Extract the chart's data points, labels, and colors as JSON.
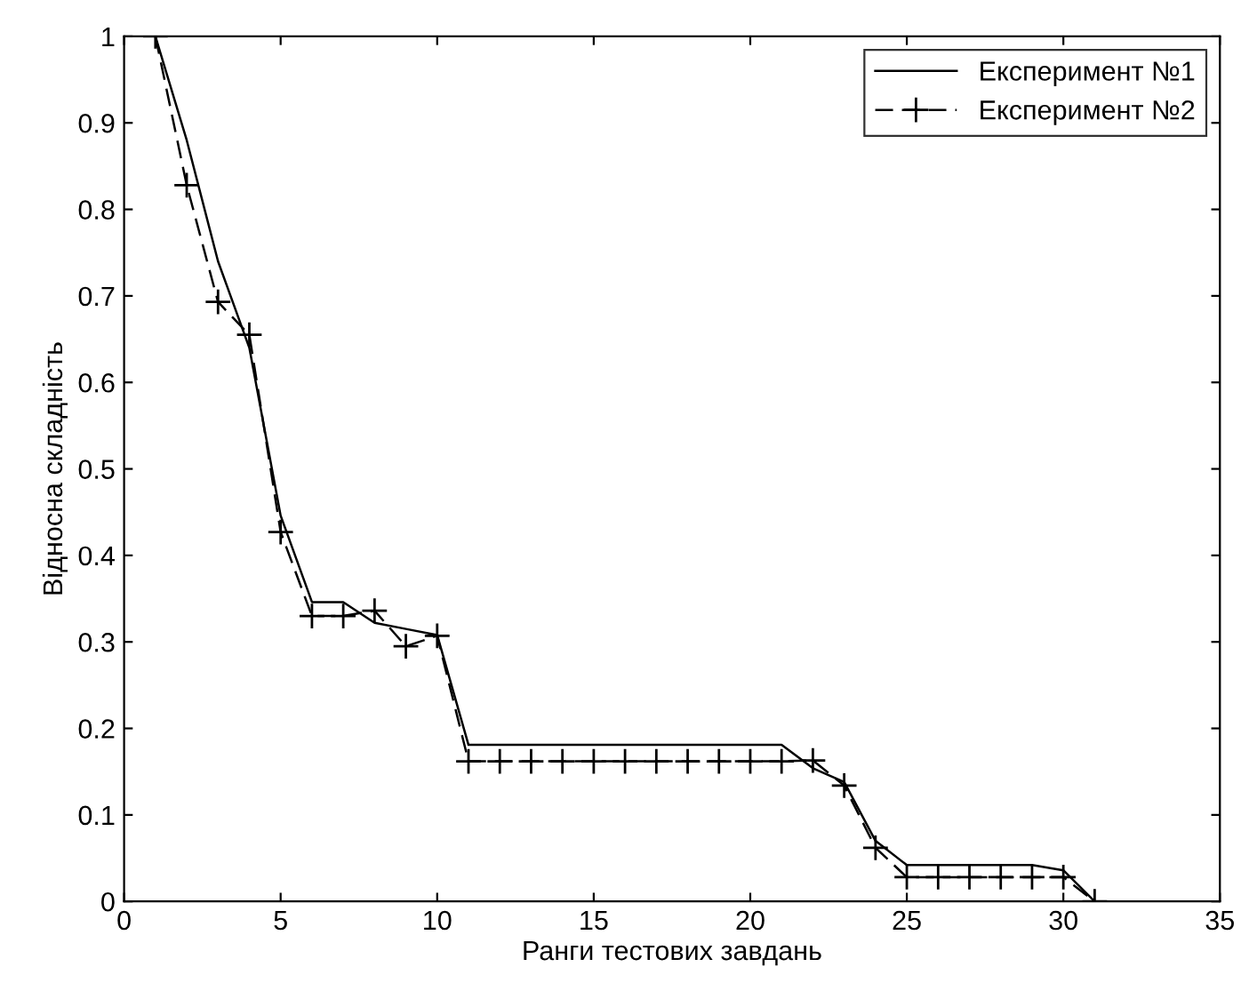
{
  "chart_data": {
    "type": "line",
    "xlabel": "Ранги тестових завдань",
    "ylabel": "Відносна складність",
    "x": [
      1,
      2,
      3,
      4,
      5,
      6,
      7,
      8,
      9,
      10,
      11,
      12,
      13,
      14,
      15,
      16,
      17,
      18,
      19,
      20,
      21,
      22,
      23,
      24,
      25,
      26,
      27,
      28,
      29,
      30,
      31
    ],
    "series": [
      {
        "name": "Експеримент №1",
        "color": "#000000",
        "line_style": "solid",
        "marker": "none",
        "values": [
          1.0,
          0.88,
          0.74,
          0.64,
          0.446,
          0.346,
          0.346,
          0.322,
          0.315,
          0.308,
          0.181,
          0.181,
          0.181,
          0.181,
          0.181,
          0.181,
          0.181,
          0.181,
          0.181,
          0.181,
          0.181,
          0.154,
          0.138,
          0.07,
          0.042,
          0.042,
          0.042,
          0.042,
          0.042,
          0.036,
          0
        ]
      },
      {
        "name": "Експеримент №2",
        "color": "#000000",
        "line_style": "dashed",
        "marker": "cross",
        "values": [
          1.0,
          0.828,
          0.693,
          0.655,
          0.427,
          0.33,
          0.33,
          0.336,
          0.295,
          0.307,
          0.162,
          0.162,
          0.162,
          0.162,
          0.162,
          0.162,
          0.162,
          0.162,
          0.162,
          0.162,
          0.162,
          0.163,
          0.134,
          0.062,
          0.028,
          0.028,
          0.028,
          0.028,
          0.028,
          0.028,
          0
        ]
      }
    ],
    "xlim": [
      0,
      35
    ],
    "xticks": [
      0,
      5,
      10,
      15,
      20,
      25,
      30,
      35
    ],
    "ylim": [
      0,
      1
    ],
    "yticks": [
      0,
      0.1,
      0.2,
      0.3,
      0.4,
      0.5,
      0.6,
      0.7,
      0.8,
      0.9,
      1
    ],
    "grid": false,
    "legend": "top right"
  }
}
